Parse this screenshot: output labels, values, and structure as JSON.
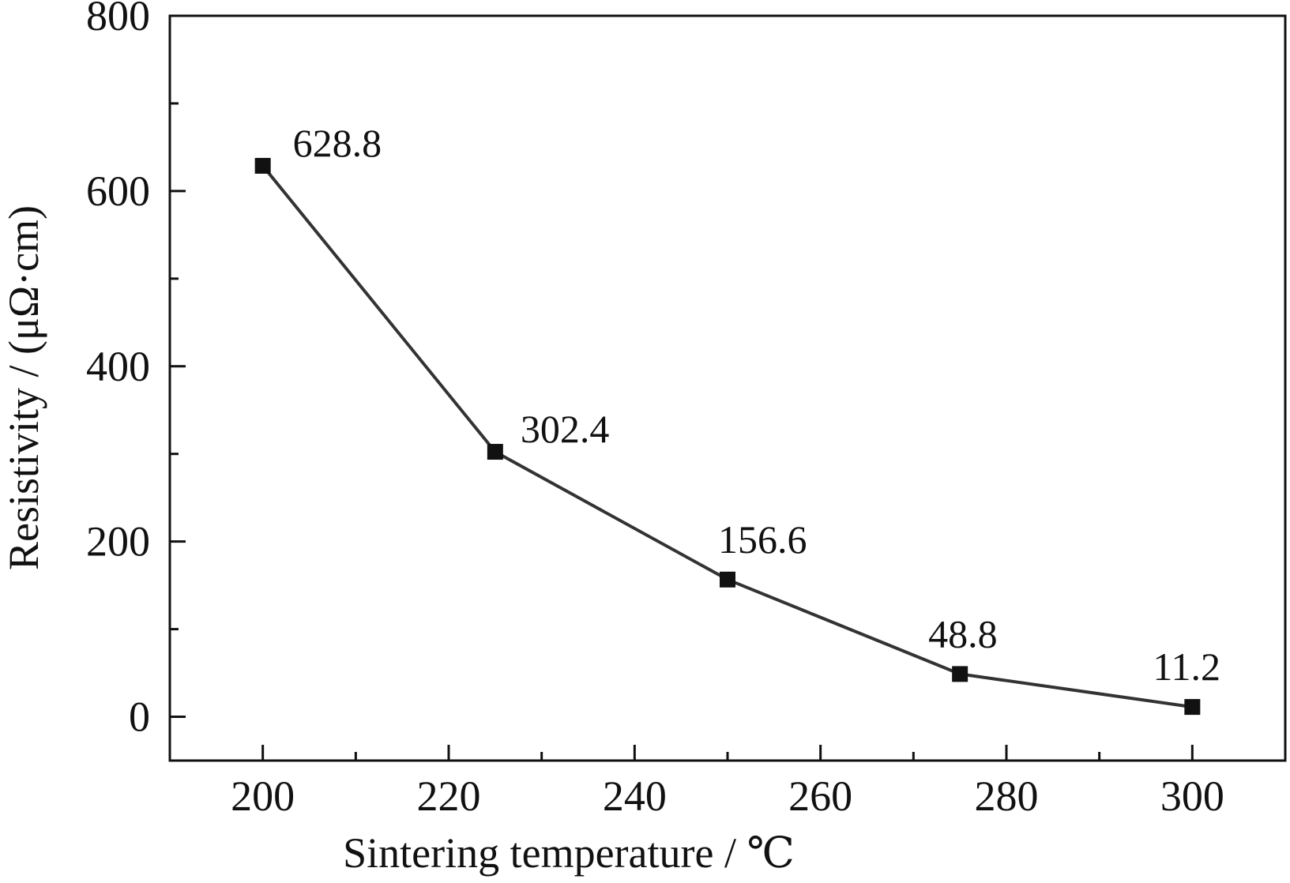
{
  "chart_data": {
    "type": "line",
    "xlabel": "Sintering temperature / ℃",
    "ylabel": "Resistivity / (μΩ·cm)",
    "xlim": [
      190,
      310
    ],
    "ylim": [
      -50,
      800
    ],
    "x_ticks": [
      200,
      220,
      240,
      260,
      280,
      300
    ],
    "x_minor_ticks": [
      210,
      230,
      250,
      270,
      290
    ],
    "y_ticks": [
      0,
      200,
      400,
      600,
      800
    ],
    "y_minor_ticks": [
      100,
      300,
      500,
      700
    ],
    "grid": false,
    "series": [
      {
        "x": [
          200,
          225,
          250,
          275,
          300
        ],
        "y": [
          628.8,
          302.4,
          156.6,
          48.8,
          11.2
        ],
        "labels": [
          "628.8",
          "302.4",
          "156.6",
          "48.8",
          "11.2"
        ],
        "marker": "square",
        "color": "#333333"
      }
    ]
  }
}
